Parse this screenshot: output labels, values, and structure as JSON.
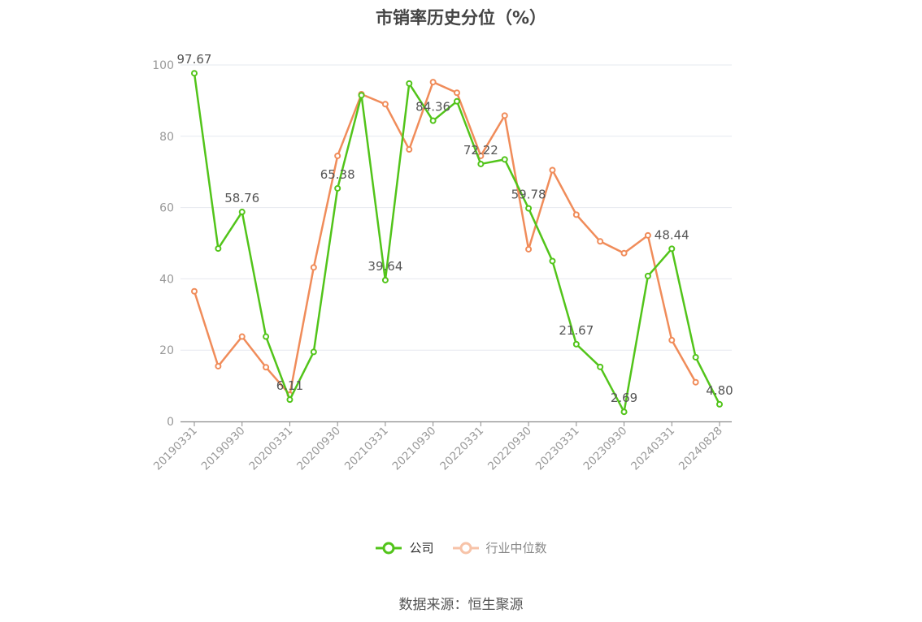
{
  "chart_data": {
    "type": "line",
    "title": "市销率历史分位（%）",
    "ylim": [
      0,
      100
    ],
    "yticks": [
      0,
      20,
      40,
      60,
      80,
      100
    ],
    "x": [
      "20190331",
      "20190630",
      "20190930",
      "20191231",
      "20200331",
      "20200630",
      "20200930",
      "20201231",
      "20210331",
      "20210630",
      "20210930",
      "20211231",
      "20220331",
      "20220630",
      "20220930",
      "20221231",
      "20230331",
      "20230630",
      "20230930",
      "20231231",
      "20240331",
      "20240630",
      "20240828"
    ],
    "xticks": [
      "20190331",
      "20190930",
      "20200331",
      "20200930",
      "20210331",
      "20210930",
      "20220331",
      "20220930",
      "20230331",
      "20230930",
      "20240331",
      "20240828"
    ],
    "grid": true,
    "legend_position": "bottom",
    "series": [
      {
        "name": "公司",
        "color": "#52c41a",
        "values": [
          97.67,
          48.5,
          58.76,
          23.8,
          6.11,
          19.5,
          65.38,
          91.5,
          39.64,
          94.8,
          84.36,
          89.8,
          72.22,
          73.5,
          59.78,
          45.0,
          21.67,
          15.3,
          2.69,
          40.8,
          48.44,
          18.0,
          4.8
        ],
        "labels": {
          "0": "97.67",
          "2": "58.76",
          "4": "6.11",
          "6": "65.38",
          "8": "39.64",
          "10": "84.36",
          "12": "72.22",
          "14": "59.78",
          "16": "21.67",
          "18": "2.69",
          "20": "48.44",
          "22": "4.80"
        }
      },
      {
        "name": "行业中位数",
        "color": "#f08c5a",
        "values": [
          36.5,
          15.5,
          23.8,
          15.2,
          7.5,
          43.2,
          74.5,
          91.8,
          89.0,
          76.3,
          95.2,
          92.2,
          74.5,
          85.8,
          48.3,
          70.5,
          58.0,
          50.5,
          47.2,
          52.2,
          22.8,
          11.0,
          null
        ]
      }
    ]
  },
  "source": "数据来源：恒生聚源"
}
